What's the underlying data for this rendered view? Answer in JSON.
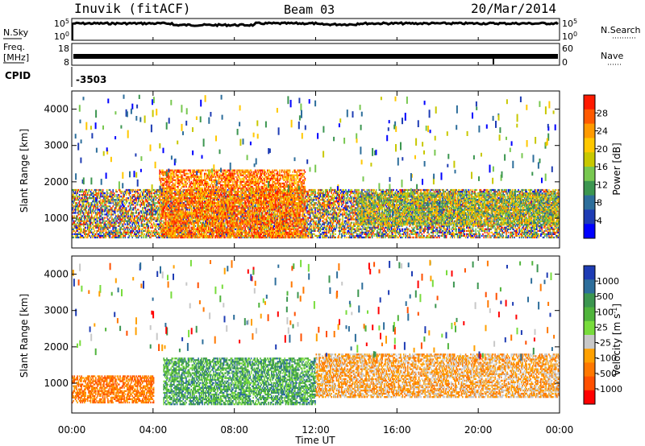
{
  "header": {
    "station": "Inuvik (fitACF)",
    "beam": "Beam 03",
    "date": "20/Mar/2014"
  },
  "top_panels": {
    "nsky_label": "N.Sky",
    "nsky_ticks": [
      "10^5",
      "10^0"
    ],
    "nsearch_label": "N.Search",
    "nsearch_ticks": [
      "10^5",
      "10^0"
    ],
    "freq_label_1": "Freq.",
    "freq_label_2": "[MHz]",
    "freq_ticks": [
      "18",
      "8"
    ],
    "nave_label": "Nave",
    "nave_ticks": [
      "60",
      "0"
    ],
    "cpid_label": "CPID",
    "cpid_value": "-3503"
  },
  "x_axis": {
    "label": "Time UT",
    "ticks": [
      "00:00",
      "04:00",
      "08:00",
      "12:00",
      "16:00",
      "20:00",
      "00:00"
    ]
  },
  "chart_data": [
    {
      "type": "heatmap",
      "title": "",
      "ylabel": "Slant Range [km]",
      "xlabel": "",
      "ylim": [
        180,
        4500
      ],
      "yticks": [
        1000,
        2000,
        3000,
        4000
      ],
      "xlim_hours": [
        0,
        24
      ],
      "colorbar": {
        "label": "Power [dB]",
        "ticks": [
          "28",
          "24",
          "20",
          "16",
          "12",
          "8",
          "4"
        ],
        "colors": [
          "#ff1a00",
          "#ff5a00",
          "#ff9a00",
          "#ffc800",
          "#c8c800",
          "#78c850",
          "#3c9650",
          "#2d6e9b",
          "#1e3cb4",
          "#0000ff"
        ]
      },
      "regions": [
        {
          "t0": 0.0,
          "t1": 24.0,
          "r0": 450,
          "r1": 1800,
          "level": "mixed-low"
        },
        {
          "t0": 4.3,
          "t1": 11.5,
          "r0": 450,
          "r1": 2300,
          "level": "high"
        },
        {
          "t0": 14.0,
          "t1": 24.0,
          "r0": 800,
          "r1": 1700,
          "level": "mid"
        }
      ]
    },
    {
      "type": "heatmap",
      "title": "",
      "ylabel": "Slant Range [km]",
      "xlabel": "Time UT",
      "ylim": [
        180,
        4500
      ],
      "yticks": [
        1000,
        2000,
        3000,
        4000
      ],
      "xlim_hours": [
        0,
        24
      ],
      "colorbar": {
        "label": "Velocity [m s^-1]",
        "ticks": [
          "1000",
          "500",
          "100",
          "25",
          "-25",
          "-100",
          "-500",
          "-1000"
        ],
        "colors": [
          "#1e3cb4",
          "#2d6e9b",
          "#3c9650",
          "#50b43c",
          "#78dc3c",
          "#c8c8c8",
          "#ffa000",
          "#ff7800",
          "#ff5000",
          "#ff0000"
        ]
      },
      "regions": [
        {
          "t0": 0.0,
          "t1": 4.0,
          "r0": 450,
          "r1": 1200,
          "level": "negative"
        },
        {
          "t0": 4.5,
          "t1": 12.0,
          "r0": 400,
          "r1": 1700,
          "level": "positive"
        },
        {
          "t0": 12.0,
          "t1": 24.0,
          "r0": 600,
          "r1": 1800,
          "level": "near-zero-negative"
        }
      ]
    }
  ]
}
